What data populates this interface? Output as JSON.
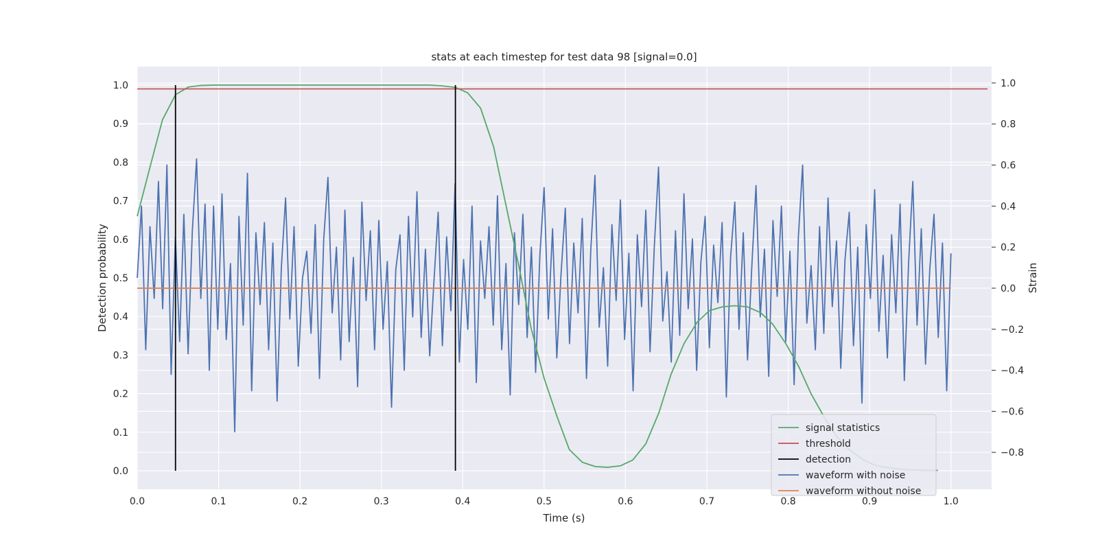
{
  "chart_data": {
    "type": "line",
    "title": "stats at each timestep for test data 98 [signal=0.0]",
    "xlabel": "Time (s)",
    "ylabel": "Detection probability",
    "y2label": "Strain",
    "xlim": [
      0.0,
      1.05
    ],
    "ylim": [
      -0.048,
      1.048
    ],
    "y2lim": [
      -0.98,
      1.08
    ],
    "x_ticks": [
      0.0,
      0.1,
      0.2,
      0.3,
      0.4,
      0.5,
      0.6,
      0.7,
      0.8,
      0.9,
      1.0
    ],
    "x_tick_labels": [
      "0.0",
      "0.1",
      "0.2",
      "0.3",
      "0.4",
      "0.5",
      "0.6",
      "0.7",
      "0.8",
      "0.9",
      "1.0"
    ],
    "y_ticks": [
      0.0,
      0.1,
      0.2,
      0.3,
      0.4,
      0.5,
      0.6,
      0.7,
      0.8,
      0.9,
      1.0
    ],
    "y_tick_labels": [
      "0.0",
      "0.1",
      "0.2",
      "0.3",
      "0.4",
      "0.5",
      "0.6",
      "0.7",
      "0.8",
      "0.9",
      "1.0"
    ],
    "y2_ticks": [
      -0.8,
      -0.6,
      -0.4,
      -0.2,
      0.0,
      0.2,
      0.4,
      0.6,
      0.8,
      1.0
    ],
    "y2_tick_labels": [
      "−0.8",
      "−0.6",
      "−0.4",
      "−0.2",
      "0.0",
      "0.2",
      "0.4",
      "0.6",
      "0.8",
      "1.0"
    ],
    "grid": true,
    "legend_position": "lower-right",
    "colors": {
      "signal_statistics": "#55a868",
      "threshold": "#c44e52",
      "detection": "#000000",
      "waveform_with_noise": "#4c72b0",
      "waveform_without_noise": "#dd8452",
      "plot_background": "#eaeaf2"
    },
    "series": [
      {
        "name": "signal statistics",
        "axis": "left",
        "x": [
          0.0,
          0.016,
          0.031,
          0.047,
          0.063,
          0.078,
          0.094,
          0.109,
          0.125,
          0.141,
          0.156,
          0.172,
          0.188,
          0.203,
          0.219,
          0.234,
          0.25,
          0.266,
          0.281,
          0.297,
          0.313,
          0.328,
          0.344,
          0.359,
          0.375,
          0.391,
          0.406,
          0.422,
          0.438,
          0.453,
          0.469,
          0.484,
          0.5,
          0.516,
          0.531,
          0.547,
          0.563,
          0.578,
          0.594,
          0.609,
          0.625,
          0.641,
          0.656,
          0.672,
          0.688,
          0.703,
          0.719,
          0.734,
          0.75,
          0.766,
          0.781,
          0.797,
          0.813,
          0.828,
          0.844,
          0.859,
          0.875,
          0.891,
          0.906,
          0.922,
          0.938,
          0.953,
          0.969,
          0.984
        ],
        "values": [
          0.66,
          0.79,
          0.91,
          0.975,
          0.995,
          0.999,
          1.0,
          1.0,
          1.0,
          1.0,
          1.0,
          1.0,
          1.0,
          1.0,
          1.0,
          1.0,
          1.0,
          1.0,
          1.0,
          1.0,
          1.0,
          1.0,
          1.0,
          1.0,
          0.998,
          0.994,
          0.98,
          0.94,
          0.84,
          0.69,
          0.53,
          0.37,
          0.24,
          0.14,
          0.055,
          0.022,
          0.011,
          0.009,
          0.013,
          0.028,
          0.07,
          0.15,
          0.25,
          0.33,
          0.385,
          0.415,
          0.425,
          0.428,
          0.425,
          0.41,
          0.38,
          0.33,
          0.27,
          0.2,
          0.14,
          0.09,
          0.055,
          0.03,
          0.015,
          0.008,
          0.004,
          0.002,
          0.001,
          0.001
        ]
      },
      {
        "name": "threshold",
        "axis": "left",
        "x": [
          0.0,
          1.05
        ],
        "values": [
          0.99,
          0.99
        ]
      },
      {
        "name": "detection",
        "axis": "left",
        "x": [
          0.047,
          0.391
        ],
        "values": [
          1.0,
          1.0
        ]
      },
      {
        "name": "waveform with noise",
        "axis": "right",
        "x_range": [
          0.0,
          1.0
        ],
        "values": [
          0.05,
          0.4,
          -0.3,
          0.3,
          -0.05,
          0.52,
          -0.1,
          0.6,
          -0.42,
          0.25,
          -0.26,
          0.36,
          -0.32,
          0.28,
          0.63,
          -0.05,
          0.41,
          -0.4,
          0.4,
          -0.2,
          0.46,
          -0.25,
          0.12,
          -0.7,
          0.35,
          -0.18,
          0.56,
          -0.5,
          0.27,
          -0.08,
          0.32,
          -0.3,
          0.22,
          -0.55,
          0.1,
          0.44,
          -0.15,
          0.3,
          -0.38,
          0.05,
          0.18,
          -0.22,
          0.31,
          -0.44,
          0.24,
          0.54,
          -0.12,
          0.2,
          -0.35,
          0.38,
          -0.26,
          0.15,
          -0.48,
          0.42,
          -0.06,
          0.28,
          -0.3,
          0.33,
          -0.2,
          0.13,
          -0.58,
          0.09,
          0.26,
          -0.4,
          0.35,
          -0.14,
          0.47,
          -0.24,
          0.19,
          -0.33,
          0.03,
          0.37,
          -0.28,
          0.25,
          -0.11,
          0.51,
          -0.36,
          0.14,
          -0.2,
          0.4,
          -0.46,
          0.23,
          -0.05,
          0.3,
          -0.18,
          0.45,
          -0.3,
          0.12,
          -0.52,
          0.27,
          -0.08,
          0.36,
          -0.24,
          0.2,
          -0.41,
          0.16,
          0.49,
          -0.15,
          0.29,
          -0.34,
          0.07,
          0.39,
          -0.27,
          0.22,
          -0.12,
          0.34,
          -0.44,
          0.18,
          0.55,
          -0.19,
          0.1,
          -0.38,
          0.31,
          -0.06,
          0.43,
          -0.25,
          0.17,
          -0.5,
          0.26,
          -0.09,
          0.38,
          -0.31,
          0.2,
          0.59,
          -0.16,
          0.08,
          -0.36,
          0.28,
          -0.23,
          0.46,
          -0.1,
          0.24,
          -0.4,
          0.13,
          0.35,
          -0.29,
          0.21,
          -0.07,
          0.32,
          -0.53,
          0.15,
          0.42,
          -0.2,
          0.27,
          -0.35,
          0.1,
          0.5,
          -0.14,
          0.19,
          -0.43,
          0.33,
          -0.04,
          0.4,
          -0.26,
          0.18,
          -0.47,
          0.25,
          0.6,
          -0.17,
          0.11,
          -0.3,
          0.3,
          -0.22,
          0.44,
          -0.09,
          0.23,
          -0.39,
          0.14,
          0.37,
          -0.28,
          0.2,
          -0.56,
          0.31,
          -0.05,
          0.48,
          -0.21,
          0.16,
          -0.34,
          0.26,
          -0.12,
          0.41,
          -0.45,
          0.12,
          0.52,
          -0.18,
          0.29,
          -0.37,
          0.09,
          0.36,
          -0.24,
          0.22,
          -0.5,
          0.17
        ],
        "value_range_note": ""
      },
      {
        "name": "waveform without noise",
        "axis": "right",
        "x": [
          0.0,
          1.0
        ],
        "values": [
          0.0,
          0.0
        ]
      }
    ],
    "legend": [
      {
        "label": "signal statistics",
        "series": "signal_statistics"
      },
      {
        "label": "threshold",
        "series": "threshold"
      },
      {
        "label": "detection",
        "series": "detection"
      },
      {
        "label": "waveform with noise",
        "series": "waveform_with_noise"
      },
      {
        "label": "waveform without noise",
        "series": "waveform_without_noise"
      }
    ]
  }
}
